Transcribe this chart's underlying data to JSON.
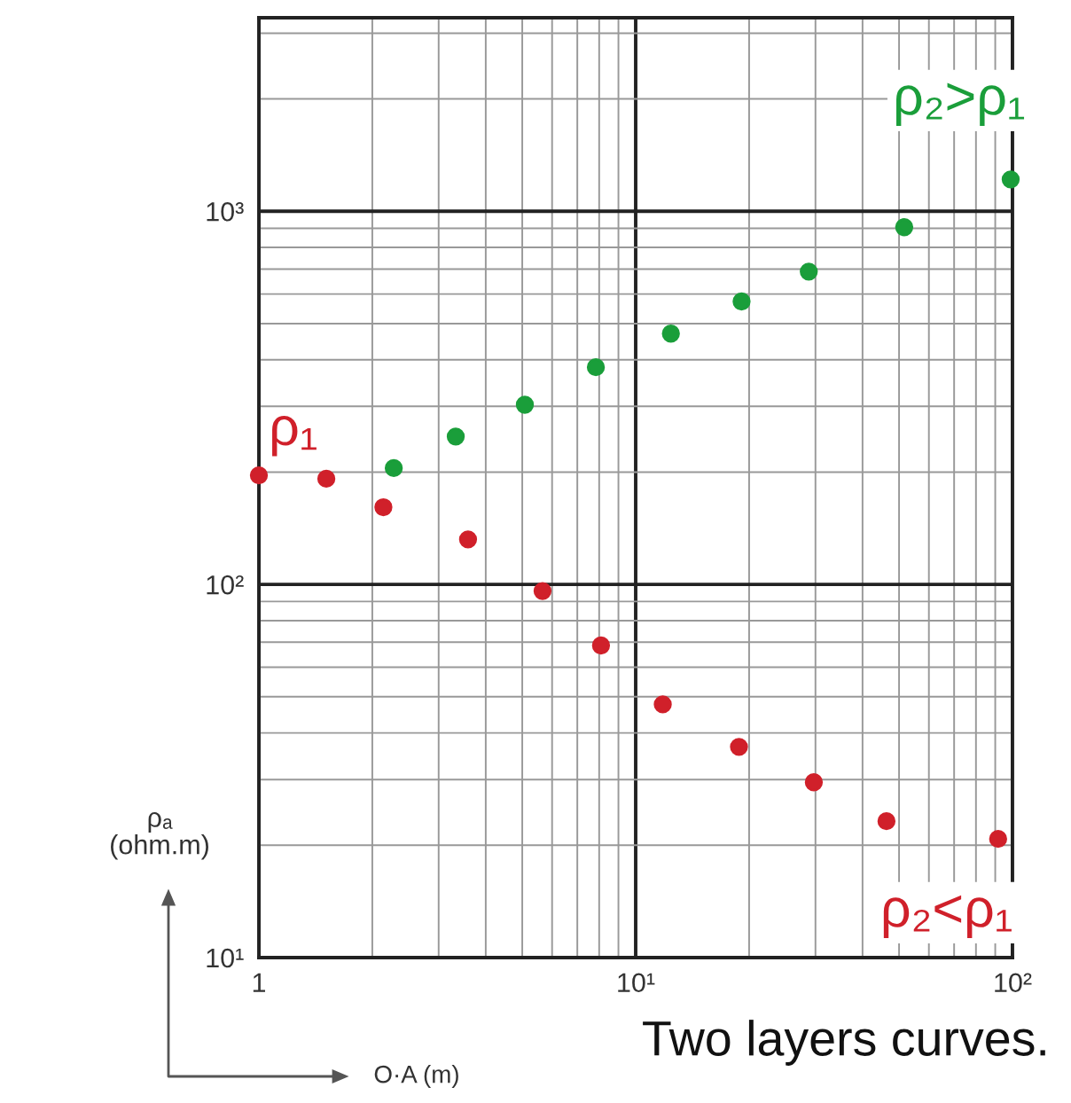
{
  "chart_data": {
    "type": "scatter",
    "xlabel": "O·A (m)",
    "ylabel": "ρₐ\n(ohm.m)",
    "log": "xy",
    "grid": true,
    "marker": "circle",
    "xlim": [
      1,
      100
    ],
    "ylim": [
      10,
      3300
    ],
    "xticks": [
      1,
      {
        "value": 10,
        "label": "10¹"
      },
      {
        "value": 100,
        "label": "10²"
      }
    ],
    "yticks": [
      {
        "value": 10,
        "label": "10¹"
      },
      {
        "value": 100,
        "label": "10²"
      },
      {
        "value": 1000,
        "label": "10³"
      }
    ],
    "series": [
      {
        "name": "ρ₂>ρ₁",
        "color": "#1a9e3a",
        "x": [
          2.28,
          3.33,
          5.08,
          7.84,
          12.4,
          19.1,
          28.8,
          51.6,
          98.9
        ],
        "values": [
          205,
          249,
          303,
          382,
          470,
          573,
          689,
          906,
          1217
        ]
      },
      {
        "name": "ρ₂<ρ₁",
        "color": "#d0202a",
        "x": [
          1,
          1.51,
          2.14,
          3.59,
          5.66,
          8.09,
          11.8,
          18.8,
          29.7,
          46.3,
          91.6
        ],
        "values": [
          196,
          192,
          161,
          132,
          96,
          68.6,
          47.7,
          36.7,
          29.5,
          23.2,
          20.8
        ]
      }
    ],
    "annotations": [
      {
        "text": "ρ₁",
        "x": 1,
        "y": 196
      },
      "Two layers curves."
    ]
  }
}
